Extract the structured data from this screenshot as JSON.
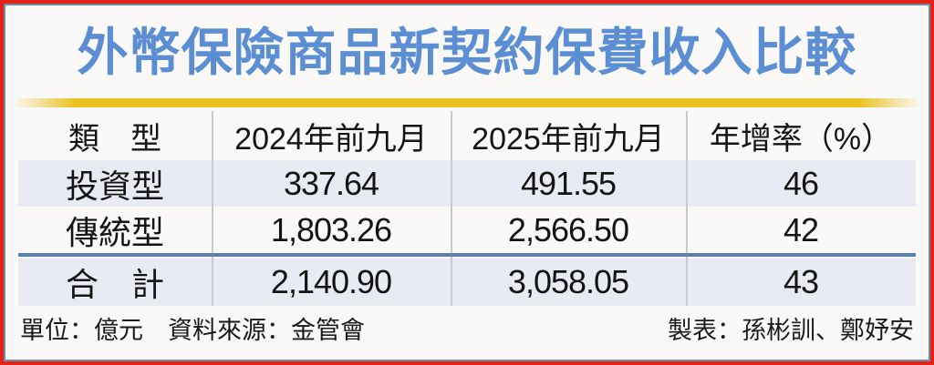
{
  "title": "外幣保險商品新契約保費收入比較",
  "table": {
    "headers": [
      "類　型",
      "2024年前九月",
      "2025年前九月",
      "年增率（%）"
    ],
    "rows": [
      {
        "cells": [
          "投資型",
          "337.64",
          "491.55",
          "46"
        ]
      },
      {
        "cells": [
          "傳統型",
          "1,803.26",
          "2,566.50",
          "42"
        ]
      },
      {
        "cells": [
          "合　計",
          "2,140.90",
          "3,058.05",
          "43"
        ]
      }
    ]
  },
  "footer": {
    "left": "單位：億元　資料來源：金管會",
    "right": "製表：孫彬訓、鄭妤安"
  },
  "colors": {
    "title_blue": "#5b8ed3",
    "accent_yellow": "#e9c222",
    "row_stripe": "#e9ebf4",
    "total_separator_blue": "#5e82b0",
    "frame_red": "#e6211c",
    "frame_inner_teal": "#68919f",
    "column_divider_gray": "#c9c9c9"
  },
  "chart_data": {
    "type": "table",
    "title": "外幣保險商品新契約保費收入比較",
    "columns": [
      "類型",
      "2024年前九月",
      "2025年前九月",
      "年增率（%）"
    ],
    "rows": [
      [
        "投資型",
        337.64,
        491.55,
        46
      ],
      [
        "傳統型",
        1803.26,
        2566.5,
        42
      ],
      [
        "合計",
        2140.9,
        3058.05,
        43
      ]
    ],
    "unit": "億元",
    "source": "金管會",
    "credits": "孫彬訓、鄭妤安"
  }
}
